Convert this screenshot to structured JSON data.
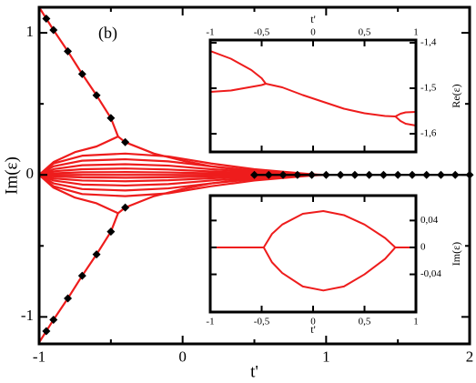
{
  "chart_data": [
    {
      "type": "line",
      "annotation": "(b)",
      "xlabel": "t'",
      "ylabel": "Im(ε)",
      "xlim": [
        -1,
        2
      ],
      "ylim": [
        -1.19,
        1.18
      ],
      "xticks": [
        -1,
        0,
        1,
        2
      ],
      "xminorticks": [
        -0.5,
        0.5,
        1.5
      ],
      "yticks": [
        -1,
        0,
        1
      ],
      "yminorticks": [
        -0.5,
        0.5
      ],
      "xaxis_position": "bottom",
      "yaxis_position": "left",
      "series": [
        {
          "color": "#ee1c1c",
          "x": [
            -1,
            -0.95,
            -0.9,
            -0.8,
            -0.7,
            -0.6,
            -0.5,
            -0.45,
            -0.4,
            -0.2,
            0,
            0.2,
            0.4,
            0.6,
            0.8,
            1
          ],
          "values": [
            1.18,
            1.1,
            1.02,
            0.87,
            0.71,
            0.56,
            0.4,
            0.27,
            0.23,
            0.15,
            0.1,
            0.06,
            0.035,
            0.018,
            0.006,
            0
          ]
        },
        {
          "color": "#ee1c1c",
          "x": [
            -1,
            -0.95,
            -0.9,
            -0.8,
            -0.7,
            -0.6,
            -0.5,
            -0.45,
            -0.4,
            -0.2,
            0,
            0.2,
            0.4,
            0.6,
            0.8,
            1
          ],
          "values": [
            -1.18,
            -1.1,
            -1.02,
            -0.87,
            -0.71,
            -0.56,
            -0.4,
            -0.27,
            -0.23,
            -0.15,
            -0.1,
            -0.06,
            -0.035,
            -0.018,
            -0.006,
            0
          ]
        },
        {
          "color": "#ee1c1c",
          "x": [
            -1,
            -0.9,
            -0.75,
            -0.6,
            -0.45
          ],
          "values": [
            0,
            0.09,
            0.16,
            0.2,
            0.27
          ]
        },
        {
          "color": "#ee1c1c",
          "x": [
            -1,
            -0.9,
            -0.75,
            -0.6,
            -0.45
          ],
          "values": [
            0,
            -0.09,
            -0.16,
            -0.2,
            -0.27
          ]
        },
        {
          "color": "#ee1c1c",
          "x": [
            -1,
            -0.9,
            -0.7,
            -0.4,
            -0.1,
            0.2,
            0.5,
            0.95,
            0.5,
            0.2,
            -0.1,
            -0.4,
            -0.7,
            -0.9,
            -1
          ],
          "values": [
            0,
            0.08,
            0.135,
            0.15,
            0.13,
            0.08,
            0.04,
            0,
            -0.04,
            -0.08,
            -0.13,
            -0.15,
            -0.135,
            -0.08,
            0
          ]
        },
        {
          "color": "#ee1c1c",
          "x": [
            -1,
            -0.9,
            -0.7,
            -0.4,
            -0.1,
            0.2,
            0.5,
            0.85,
            0.5,
            0.2,
            -0.1,
            -0.4,
            -0.7,
            -0.9,
            -1
          ],
          "values": [
            0,
            0.06,
            0.1,
            0.11,
            0.095,
            0.06,
            0.03,
            0,
            -0.03,
            -0.06,
            -0.095,
            -0.11,
            -0.1,
            -0.06,
            0
          ]
        },
        {
          "color": "#ee1c1c",
          "x": [
            -1,
            -0.9,
            -0.7,
            -0.4,
            -0.1,
            0.2,
            0.5,
            0.75,
            0.5,
            0.2,
            -0.1,
            -0.4,
            -0.7,
            -0.9,
            -1
          ],
          "values": [
            0,
            0.04,
            0.068,
            0.075,
            0.065,
            0.04,
            0.02,
            0,
            -0.02,
            -0.04,
            -0.065,
            -0.075,
            -0.068,
            -0.04,
            0
          ]
        },
        {
          "color": "#ee1c1c",
          "x": [
            -1,
            -0.9,
            -0.7,
            -0.4,
            -0.1,
            0.2,
            0.5,
            0.65,
            0.5,
            0.2,
            -0.1,
            -0.4,
            -0.7,
            -0.9,
            -1
          ],
          "values": [
            0,
            0.025,
            0.04,
            0.045,
            0.038,
            0.024,
            0.012,
            0,
            -0.012,
            -0.024,
            -0.038,
            -0.045,
            -0.04,
            -0.025,
            0
          ]
        },
        {
          "color": "#ee1c1c",
          "x": [
            -1,
            -0.9,
            -0.7,
            -0.4,
            -0.1,
            0.2,
            0.5,
            0.55,
            0.5,
            0.2,
            -0.1,
            -0.4,
            -0.7,
            -0.9,
            -1
          ],
          "values": [
            0,
            0.011,
            0.018,
            0.02,
            0.017,
            0.011,
            0.005,
            0,
            -0.005,
            -0.011,
            -0.017,
            -0.02,
            -0.018,
            -0.011,
            0
          ]
        },
        {
          "color": "#ee1c1c",
          "x": [
            -1,
            1
          ],
          "values": [
            0,
            0
          ]
        },
        {
          "color": "#000000",
          "marker": "diamond",
          "line": false,
          "x": [
            -0.95,
            -0.9,
            -0.8,
            -0.7,
            -0.6,
            -0.5,
            -0.4
          ],
          "values": [
            1.1,
            1.02,
            0.87,
            0.71,
            0.56,
            0.4,
            0.23
          ]
        },
        {
          "color": "#000000",
          "marker": "diamond",
          "line": false,
          "x": [
            -0.95,
            -0.9,
            -0.8,
            -0.7,
            -0.6,
            -0.5,
            -0.4
          ],
          "values": [
            -1.1,
            -1.02,
            -0.87,
            -0.71,
            -0.56,
            -0.4,
            -0.23
          ]
        },
        {
          "color": "#000000",
          "marker": "diamond",
          "line": true,
          "x": [
            0.5,
            0.6,
            0.7,
            0.8,
            0.9,
            1.0,
            1.1,
            1.2,
            1.3,
            1.4,
            1.5,
            1.6,
            1.7,
            1.8,
            1.9,
            2.0
          ],
          "values": [
            0,
            0,
            0,
            0,
            0,
            0,
            0,
            0,
            0,
            0,
            0,
            0,
            0,
            0,
            0,
            0
          ]
        }
      ]
    },
    {
      "type": "line",
      "xlabel": "t'",
      "ylabel": "Re(ε)",
      "xlim": [
        -1,
        1
      ],
      "ylim": [
        -1.64,
        -1.394
      ],
      "xticks": [
        -1,
        {
          "value": -0.5,
          "label": "-0,5"
        },
        0,
        {
          "value": 0.5,
          "label": "0,5"
        },
        1
      ],
      "yticks": [
        {
          "value": -1.4,
          "label": "-1,4"
        },
        {
          "value": -1.5,
          "label": "-1,5"
        },
        {
          "value": -1.6,
          "label": "-1,6"
        }
      ],
      "xaxis_position": "top",
      "yaxis_position": "right",
      "series": [
        {
          "color": "#ee1c1c",
          "x": [
            -1,
            -0.8,
            -0.6,
            -0.5,
            -0.46
          ],
          "values": [
            -1.418,
            -1.435,
            -1.46,
            -1.478,
            -1.49
          ]
        },
        {
          "color": "#ee1c1c",
          "x": [
            -1,
            -0.8,
            -0.6,
            -0.5,
            -0.46
          ],
          "values": [
            -1.508,
            -1.505,
            -1.497,
            -1.493,
            -1.49
          ]
        },
        {
          "color": "#ee1c1c",
          "x": [
            -0.46,
            -0.3,
            -0.1,
            0.1,
            0.3,
            0.5,
            0.7,
            0.8
          ],
          "values": [
            -1.49,
            -1.498,
            -1.515,
            -1.53,
            -1.545,
            -1.555,
            -1.561,
            -1.562
          ]
        },
        {
          "color": "#ee1c1c",
          "x": [
            0.8,
            0.85,
            0.9,
            1
          ],
          "values": [
            -1.562,
            -1.556,
            -1.553,
            -1.552
          ]
        },
        {
          "color": "#ee1c1c",
          "x": [
            0.8,
            0.85,
            0.9,
            1
          ],
          "values": [
            -1.562,
            -1.572,
            -1.578,
            -1.582
          ]
        }
      ]
    },
    {
      "type": "line",
      "xlabel": "t'",
      "ylabel": "Im(ε)",
      "xlim": [
        -1,
        1
      ],
      "ylim": [
        -0.096,
        0.077
      ],
      "xticks": [
        -1,
        {
          "value": -0.5,
          "label": "-0,5"
        },
        0,
        {
          "value": 0.5,
          "label": "0,5"
        },
        1
      ],
      "yticks": [
        {
          "value": 0.04,
          "label": "0,04"
        },
        0,
        {
          "value": -0.04,
          "label": "-0,04"
        }
      ],
      "xaxis_position": "bottom",
      "yaxis_position": "right",
      "series": [
        {
          "color": "#ee1c1c",
          "x": [
            -1,
            -0.48
          ],
          "values": [
            0,
            0
          ]
        },
        {
          "color": "#ee1c1c",
          "x": [
            -0.48,
            -0.4,
            -0.3,
            -0.1,
            0.1,
            0.3,
            0.5,
            0.7,
            0.8
          ],
          "values": [
            0,
            0.02,
            0.034,
            0.05,
            0.054,
            0.048,
            0.034,
            0.014,
            0
          ]
        },
        {
          "color": "#ee1c1c",
          "x": [
            -0.48,
            -0.4,
            -0.3,
            -0.1,
            0.1,
            0.3,
            0.5,
            0.7,
            0.8
          ],
          "values": [
            0,
            -0.022,
            -0.038,
            -0.058,
            -0.064,
            -0.058,
            -0.04,
            -0.017,
            0
          ]
        },
        {
          "color": "#ee1c1c",
          "x": [
            0.8,
            1
          ],
          "values": [
            0,
            0
          ]
        }
      ]
    }
  ]
}
